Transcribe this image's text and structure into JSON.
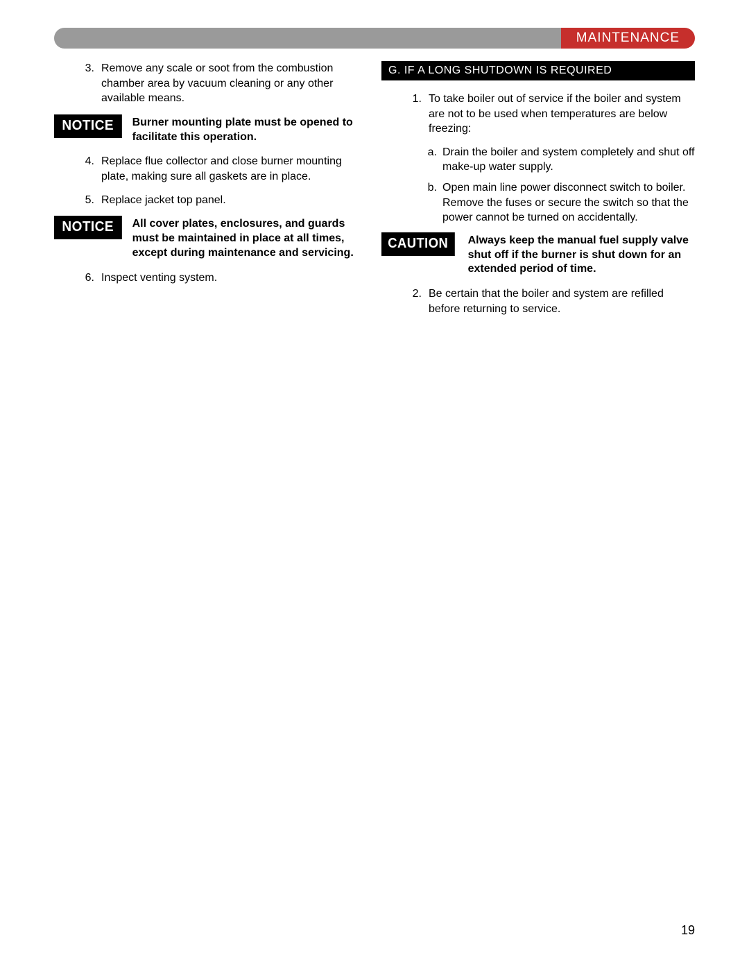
{
  "header": {
    "title": "MAINTENANCE",
    "grey_bg": "#9a9a9a",
    "red_bg": "#c62f2c"
  },
  "left": {
    "item3": {
      "num": "3.",
      "text": "Remove any scale or soot from the combustion chamber area by vacuum cleaning or any other available means."
    },
    "notice1": {
      "label": "NOTICE",
      "text": "Burner mounting plate must be opened to facilitate this operation."
    },
    "item4": {
      "num": "4.",
      "text": "Replace flue collector and close burner mounting plate, making sure all gaskets are in place."
    },
    "item5": {
      "num": "5.",
      "text": "Replace jacket top panel."
    },
    "notice2": {
      "label": "NOTICE",
      "text": "All cover plates, enclosures, and guards must be maintained in place at all times, except during maintenance and servicing."
    },
    "item6": {
      "num": "6.",
      "text": "Inspect venting system."
    }
  },
  "right": {
    "section": "G.  IF A LONG SHUTDOWN IS REQUIRED",
    "item1": {
      "num": "1.",
      "text": "To take boiler out of service if the boiler and system are not to be used when temperatures are below freezing:"
    },
    "sub_a": {
      "num": "a.",
      "text": "Drain the boiler and system completely and shut off make-up water supply."
    },
    "sub_b": {
      "num": "b.",
      "text": "Open main line power disconnect switch to boiler. Remove the fuses or secure the switch so that the power cannot be turned on accidentally."
    },
    "caution": {
      "label": "CAUTION",
      "text": "Always keep the manual fuel supply valve shut off if the burner is shut down for an extended period of time."
    },
    "item2": {
      "num": "2.",
      "text": "Be certain that the boiler and system are refilled before returning to service."
    }
  },
  "page_number": "19"
}
